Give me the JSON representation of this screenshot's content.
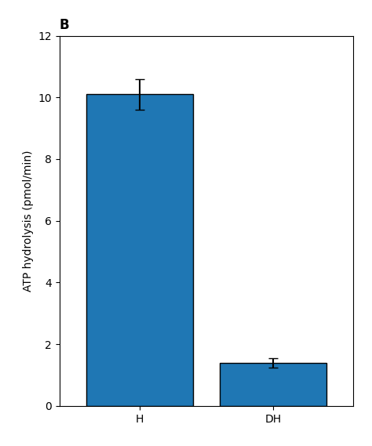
{
  "chart_data": {
    "type": "bar",
    "title": "B",
    "categories": [
      "H",
      "DH"
    ],
    "values": [
      10.1,
      1.4
    ],
    "errors": [
      0.5,
      0.15
    ],
    "ylabel": "ATP hydrolysis (pmol/min)",
    "ylim": [
      0,
      12
    ],
    "yticks": [
      0,
      2,
      4,
      6,
      8,
      10,
      12
    ],
    "grid": false
  }
}
